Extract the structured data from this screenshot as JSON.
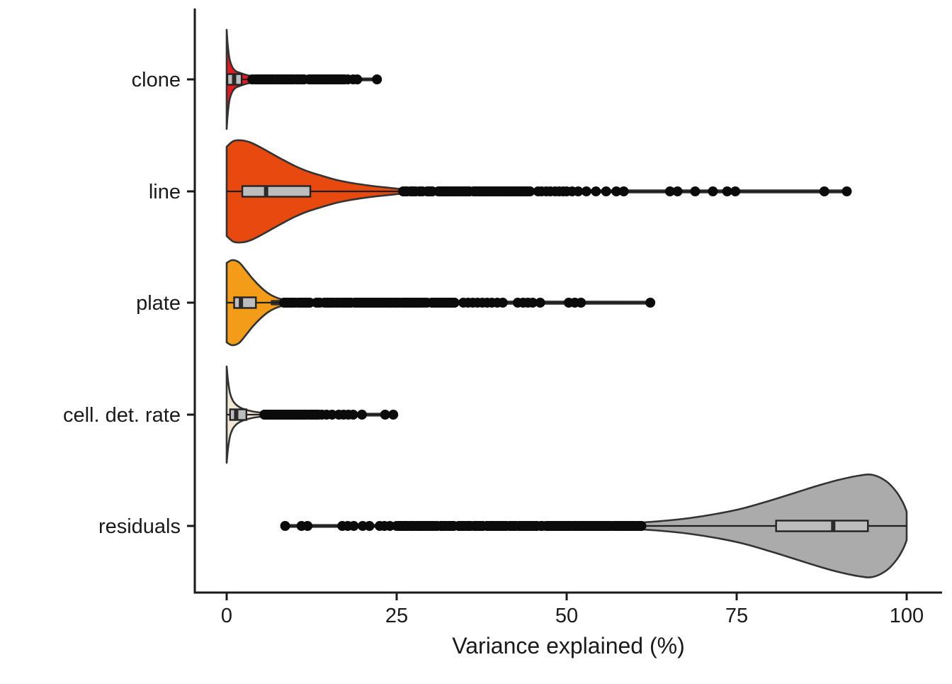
{
  "figure": {
    "background": "#FFFFFF",
    "axis_color": "#1A1A1A",
    "text_color": "#1A1A1A",
    "point_color": "#0B0B0B",
    "box_fill": "#BDBDBD",
    "box_stroke": "#222222",
    "median_color": "#2A2A2A",
    "violin_stroke": "#333333"
  },
  "chart_data": {
    "type": "violin",
    "subtype": "violin+box+points",
    "orientation": "horizontal",
    "title": "",
    "xlabel": "Variance explained (%)",
    "ylabel": "",
    "xticks": [
      "0",
      "25",
      "50",
      "75",
      "100"
    ],
    "xtick_values": [
      0,
      25,
      50,
      75,
      100
    ],
    "xlim": [
      -4.7,
      107
    ],
    "grid": "off",
    "legend": "none",
    "categories": [
      "clone",
      "line",
      "plate",
      "cell. det. rate",
      "residuals"
    ],
    "series": [
      {
        "label": "clone",
        "color": "#E8191F",
        "data_range": [
          0,
          22.1
        ],
        "violin_profile": [
          [
            0,
            70
          ],
          [
            0.15,
            50
          ],
          [
            0.4,
            30
          ],
          [
            0.8,
            18
          ],
          [
            1.3,
            12
          ],
          [
            2,
            9
          ],
          [
            3,
            6
          ],
          [
            4,
            4.2
          ],
          [
            5,
            3
          ],
          [
            6.5,
            2
          ],
          [
            9,
            1.5
          ],
          [
            22.1,
            1.3
          ]
        ],
        "box": {
          "q1": 0.1,
          "median": 1.1,
          "q3": 2.2
        },
        "dense_points": {
          "range": [
            3.7,
            17.3
          ],
          "count": 110
        },
        "sparse_points": [
          17.8,
          18.6,
          19.2,
          22.1
        ]
      },
      {
        "label": "line",
        "color": "#E8490F",
        "data_range": [
          0,
          91.2
        ],
        "violin_profile": [
          [
            0,
            63
          ],
          [
            1,
            71
          ],
          [
            2.2,
            72
          ],
          [
            3.5,
            69
          ],
          [
            5,
            62
          ],
          [
            6.5,
            54
          ],
          [
            8,
            46
          ],
          [
            10,
            36
          ],
          [
            12,
            28
          ],
          [
            14,
            22
          ],
          [
            16,
            16.5
          ],
          [
            18,
            12.5
          ],
          [
            20,
            9.5
          ],
          [
            22,
            7
          ],
          [
            24,
            5
          ],
          [
            26,
            3
          ],
          [
            28,
            2
          ],
          [
            32,
            1.6
          ],
          [
            91.2,
            1.4
          ]
        ],
        "box": {
          "q1": 2.3,
          "median": 5.8,
          "q3": 12.3
        },
        "dense_points": {
          "range": [
            25.8,
            44.3
          ],
          "count": 150
        },
        "sparse_points": [
          44.6,
          45.8,
          46.3,
          47.0,
          47.6,
          48.3,
          48.9,
          49.5,
          50.0,
          50.8,
          51.7,
          52.9,
          54.3,
          55.8,
          57.3,
          58.4,
          65.2,
          66.3,
          68.9,
          71.5,
          73.6,
          74.8,
          87.9,
          91.2
        ]
      },
      {
        "label": "plate",
        "color": "#F29C17",
        "data_range": [
          0,
          62.3
        ],
        "violin_profile": [
          [
            0,
            56
          ],
          [
            0.8,
            60
          ],
          [
            1.8,
            57
          ],
          [
            2.8,
            46
          ],
          [
            3.8,
            34
          ],
          [
            5,
            22
          ],
          [
            6,
            14
          ],
          [
            7,
            8.5
          ],
          [
            8,
            5
          ],
          [
            9,
            3
          ],
          [
            11,
            2
          ],
          [
            62.3,
            1.4
          ]
        ],
        "box": {
          "q1": 1.1,
          "median": 2.1,
          "q3": 4.3
        },
        "dense_points": {
          "range": [
            8.3,
            33.6
          ],
          "count": 200
        },
        "sparse_points": [
          34.8,
          35.5,
          36.2,
          36.9,
          37.6,
          38.3,
          39.0,
          39.8,
          40.6,
          42.8,
          43.6,
          44.3,
          45.0,
          46.1,
          50.3,
          51.2,
          52.1,
          62.3
        ]
      },
      {
        "label": "cell. det. rate",
        "color": "#F2E8D4",
        "data_range": [
          0,
          24.9
        ],
        "violin_profile": [
          [
            0,
            68
          ],
          [
            0.2,
            48
          ],
          [
            0.5,
            30
          ],
          [
            0.9,
            20
          ],
          [
            1.4,
            14
          ],
          [
            2,
            10
          ],
          [
            2.8,
            7
          ],
          [
            3.6,
            5
          ],
          [
            4.5,
            3.5
          ],
          [
            6,
            2.2
          ],
          [
            9,
            1.6
          ],
          [
            24.9,
            1.3
          ]
        ],
        "box": {
          "q1": 0.5,
          "median": 1.4,
          "q3": 2.9
        },
        "dense_points": {
          "range": [
            5.4,
            13.6
          ],
          "count": 90
        },
        "sparse_points": [
          14.0,
          14.7,
          15.5,
          16.5,
          17.2,
          17.9,
          18.6,
          19.9,
          23.3,
          24.5
        ]
      },
      {
        "label": "residuals",
        "color": "#ABABAB",
        "data_range": [
          8.6,
          100
        ],
        "violin_profile": [
          [
            8.6,
            1.3
          ],
          [
            30,
            1.5
          ],
          [
            45,
            2
          ],
          [
            55,
            3
          ],
          [
            60,
            4.5
          ],
          [
            64,
            7
          ],
          [
            68,
            11
          ],
          [
            72,
            17
          ],
          [
            76,
            25
          ],
          [
            80,
            36
          ],
          [
            84,
            48
          ],
          [
            87,
            57
          ],
          [
            90,
            65
          ],
          [
            93,
            71
          ],
          [
            95,
            72
          ],
          [
            97,
            63
          ],
          [
            98.5,
            48
          ],
          [
            99.5,
            32
          ],
          [
            100,
            20
          ]
        ],
        "box": {
          "q1": 80.8,
          "median": 89.2,
          "q3": 94.3
        },
        "dense_points": {
          "range": [
            24.5,
            61.0
          ],
          "count": 280
        },
        "sparse_points": [
          8.6,
          11.0,
          11.9,
          17.0,
          17.8,
          18.7,
          20.0,
          21.0,
          22.5,
          23.2,
          24.0
        ]
      }
    ]
  }
}
